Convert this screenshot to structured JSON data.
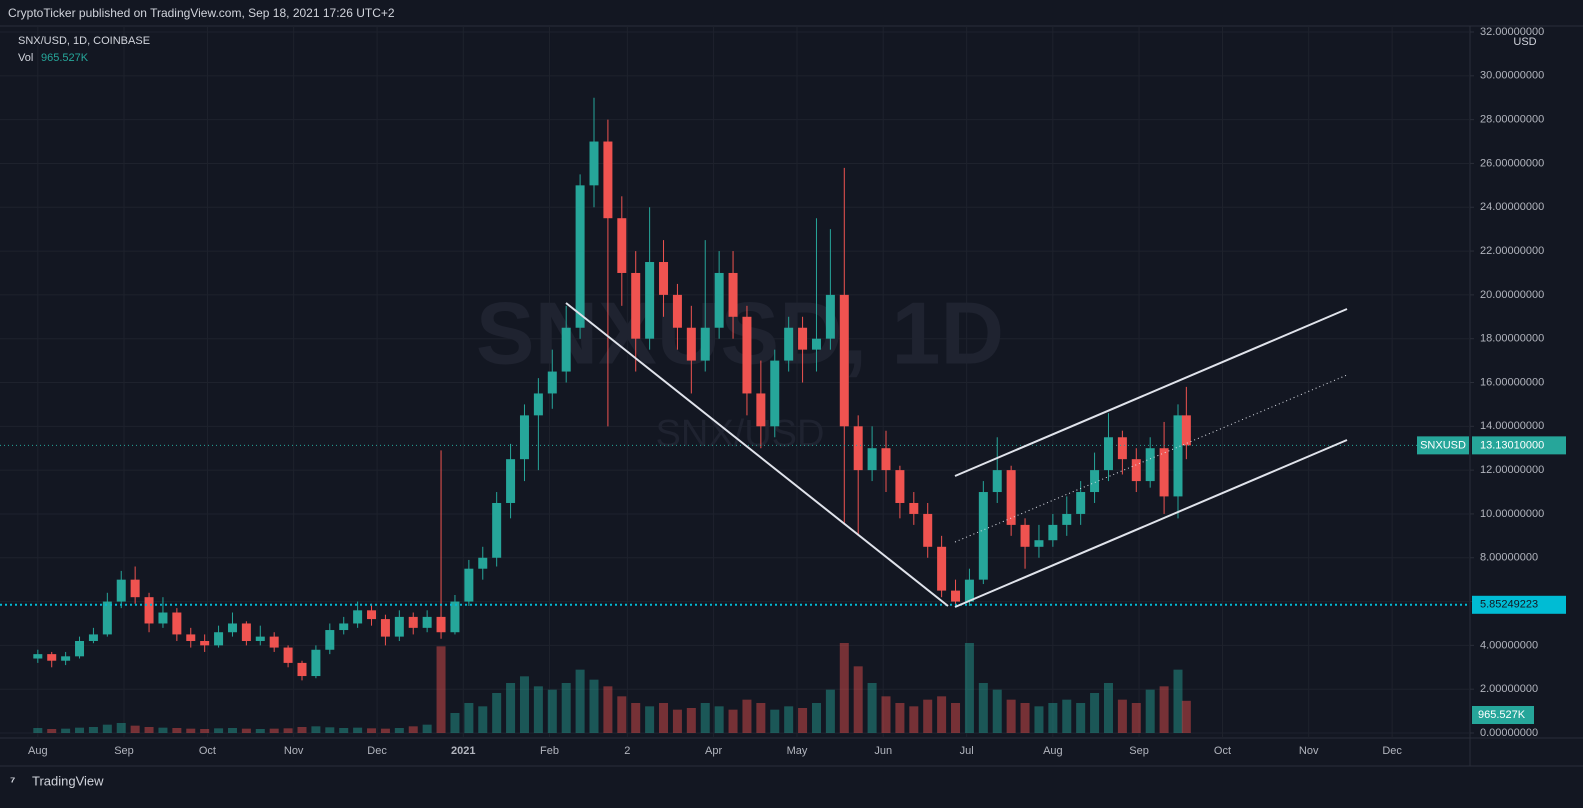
{
  "header": "CryptoTicker published on TradingView.com, Sep 18, 2021 17:26 UTC+2",
  "footer": "TradingView",
  "chart_data": {
    "type": "candlestick",
    "symbol_line": "SNX/USD, 1D, COINBASE",
    "watermark": "SNXUSD, 1D",
    "watermark_sub": "SNX/USD",
    "currency": "USD",
    "volume_title": "Vol",
    "volume_readout": "965.527K",
    "x": [
      0,
      5,
      10,
      15,
      20,
      25,
      30,
      35,
      40,
      45,
      50,
      55,
      60,
      65,
      70,
      75,
      80,
      85,
      90,
      95,
      100,
      105,
      110,
      115,
      120,
      125,
      130,
      135,
      140,
      145,
      150,
      155,
      160,
      165,
      170,
      175,
      180,
      185,
      190,
      195,
      200,
      205,
      210,
      215,
      220,
      225,
      230,
      235,
      240,
      245,
      250,
      255,
      260,
      265,
      270,
      275,
      280,
      285,
      290,
      295,
      300,
      305,
      310,
      315,
      320,
      325,
      330,
      335,
      340,
      345,
      350,
      355,
      360,
      365,
      370,
      375,
      380,
      385,
      390,
      395,
      400,
      405,
      410,
      413
    ],
    "open": [
      3.4,
      3.6,
      3.3,
      3.5,
      4.2,
      4.5,
      6.0,
      7.0,
      6.2,
      5.0,
      5.5,
      4.5,
      4.2,
      4.0,
      4.6,
      5.0,
      4.2,
      4.4,
      3.9,
      3.2,
      2.6,
      3.8,
      4.7,
      5.0,
      5.6,
      5.2,
      4.4,
      5.3,
      4.8,
      5.3,
      4.6,
      6.0,
      7.5,
      8.0,
      10.5,
      12.5,
      14.5,
      15.5,
      16.5,
      18.5,
      25.0,
      27.0,
      23.5,
      21.0,
      18.0,
      21.5,
      20.0,
      18.5,
      17.0,
      18.5,
      21.0,
      19.0,
      15.5,
      14.0,
      17.0,
      18.5,
      17.5,
      18.0,
      20.0,
      14.0,
      12.0,
      13.0,
      12.0,
      10.5,
      10.0,
      8.5,
      6.5,
      6.0,
      7.0,
      11.0,
      12.0,
      9.5,
      8.5,
      8.8,
      9.5,
      10.0,
      11.0,
      12.0,
      13.5,
      12.5,
      11.5,
      13.0,
      10.8,
      14.5
    ],
    "high": [
      3.8,
      3.7,
      3.7,
      4.4,
      4.8,
      6.4,
      7.4,
      7.6,
      6.4,
      6.2,
      5.7,
      4.8,
      4.5,
      4.9,
      5.5,
      5.1,
      4.9,
      4.6,
      4.0,
      3.3,
      4.0,
      5.0,
      5.3,
      6.0,
      5.9,
      5.4,
      5.6,
      5.5,
      5.6,
      12.9,
      6.3,
      7.9,
      8.5,
      11.0,
      13.2,
      15.0,
      16.2,
      17.5,
      19.5,
      25.5,
      29.0,
      28.0,
      24.5,
      22.0,
      24.0,
      22.5,
      20.5,
      19.5,
      22.5,
      22.0,
      22.0,
      19.5,
      17.0,
      17.5,
      19.0,
      19.0,
      23.5,
      23.0,
      25.8,
      14.5,
      14.0,
      13.8,
      12.2,
      11.0,
      10.5,
      9.0,
      7.0,
      7.5,
      11.5,
      13.5,
      12.2,
      9.8,
      9.5,
      10.0,
      10.8,
      11.5,
      12.8,
      14.6,
      13.8,
      13.0,
      13.5,
      14.2,
      15.0,
      15.8
    ],
    "low": [
      3.2,
      3.0,
      3.1,
      3.4,
      4.1,
      4.4,
      5.7,
      5.9,
      4.6,
      4.8,
      4.2,
      3.9,
      3.7,
      3.9,
      4.4,
      4.0,
      4.0,
      3.7,
      3.0,
      2.4,
      2.5,
      3.6,
      4.5,
      4.8,
      4.9,
      4.0,
      4.2,
      4.5,
      4.6,
      4.3,
      4.5,
      5.8,
      7.0,
      7.6,
      9.8,
      11.5,
      12.0,
      14.8,
      16.0,
      18.0,
      24.0,
      14.0,
      19.5,
      16.5,
      17.5,
      19.0,
      17.5,
      15.5,
      16.5,
      18.0,
      18.0,
      14.5,
      13.0,
      13.5,
      16.5,
      16.0,
      16.5,
      17.5,
      9.5,
      9.0,
      11.5,
      11.0,
      9.8,
      9.5,
      8.0,
      6.2,
      5.8,
      5.8,
      6.8,
      10.5,
      9.0,
      7.5,
      8.0,
      8.5,
      9.0,
      9.5,
      10.5,
      11.5,
      11.8,
      11.0,
      11.2,
      10.0,
      9.8,
      12.5
    ],
    "close": [
      3.6,
      3.3,
      3.5,
      4.2,
      4.5,
      6.0,
      7.0,
      6.2,
      5.0,
      5.5,
      4.5,
      4.2,
      4.0,
      4.6,
      5.0,
      4.2,
      4.4,
      3.9,
      3.2,
      2.6,
      3.8,
      4.7,
      5.0,
      5.6,
      5.2,
      4.4,
      5.3,
      4.8,
      5.3,
      4.6,
      6.0,
      7.5,
      8.0,
      10.5,
      12.5,
      14.5,
      15.5,
      16.5,
      18.5,
      25.0,
      27.0,
      23.5,
      21.0,
      18.0,
      21.5,
      20.0,
      18.5,
      17.0,
      18.5,
      21.0,
      19.0,
      15.5,
      14.0,
      17.0,
      18.5,
      17.5,
      18.0,
      20.0,
      14.0,
      12.0,
      13.0,
      12.0,
      10.5,
      10.0,
      8.5,
      6.5,
      6.0,
      7.0,
      11.0,
      12.0,
      9.5,
      8.5,
      8.8,
      9.5,
      10.0,
      11.0,
      12.0,
      13.5,
      12.5,
      11.5,
      13.0,
      10.8,
      14.5,
      13.13
    ],
    "volume": [
      150000,
      120000,
      130000,
      160000,
      180000,
      250000,
      300000,
      220000,
      180000,
      160000,
      150000,
      130000,
      120000,
      140000,
      150000,
      130000,
      120000,
      130000,
      140000,
      180000,
      200000,
      170000,
      150000,
      160000,
      140000,
      130000,
      150000,
      200000,
      250000,
      2600000,
      600000,
      900000,
      800000,
      1200000,
      1500000,
      1700000,
      1400000,
      1300000,
      1500000,
      1900000,
      1600000,
      1400000,
      1100000,
      900000,
      800000,
      900000,
      700000,
      750000,
      900000,
      800000,
      700000,
      1000000,
      900000,
      700000,
      800000,
      750000,
      900000,
      1300000,
      2700000,
      2000000,
      1500000,
      1100000,
      900000,
      800000,
      1000000,
      1100000,
      900000,
      2700000,
      1500000,
      1300000,
      1000000,
      900000,
      800000,
      900000,
      1000000,
      900000,
      1200000,
      1500000,
      1000000,
      900000,
      1300000,
      1400000,
      1900000,
      965527
    ],
    "volume_ylim": [
      0,
      3000000
    ],
    "up_color": "#26a69a",
    "down_color": "#ef5350",
    "xlim": [
      -10,
      515
    ],
    "xticks": [
      {
        "value": 0,
        "label": "Aug"
      },
      {
        "value": 31,
        "label": "Sep"
      },
      {
        "value": 61,
        "label": "Oct"
      },
      {
        "value": 92,
        "label": "Nov"
      },
      {
        "value": 122,
        "label": "Dec"
      },
      {
        "value": 153,
        "label": "2021"
      },
      {
        "value": 184,
        "label": "Feb"
      },
      {
        "value": 212,
        "label": "2"
      },
      {
        "value": 243,
        "label": "Apr"
      },
      {
        "value": 273,
        "label": "May"
      },
      {
        "value": 304,
        "label": "Jun"
      },
      {
        "value": 334,
        "label": "Jul"
      },
      {
        "value": 365,
        "label": "Aug"
      },
      {
        "value": 396,
        "label": "Sep"
      },
      {
        "value": 426,
        "label": "Oct"
      },
      {
        "value": 457,
        "label": "Nov"
      },
      {
        "value": 487,
        "label": "Dec"
      }
    ],
    "ylim": [
      0,
      32
    ],
    "yticks": [
      {
        "value": 0,
        "label": "0.00000000"
      },
      {
        "value": 2,
        "label": "2.00000000"
      },
      {
        "value": 4,
        "label": "4.00000000"
      },
      {
        "value": 6,
        "label": "6.00000000"
      },
      {
        "value": 8,
        "label": "8.00000000"
      },
      {
        "value": 10,
        "label": "10.00000000"
      },
      {
        "value": 12,
        "label": "12.00000000"
      },
      {
        "value": 14,
        "label": "14.00000000"
      },
      {
        "value": 16,
        "label": "16.00000000"
      },
      {
        "value": 18,
        "label": "18.00000000"
      },
      {
        "value": 20,
        "label": "20.00000000"
      },
      {
        "value": 22,
        "label": "22.00000000"
      },
      {
        "value": 24,
        "label": "24.00000000"
      },
      {
        "value": 26,
        "label": "26.00000000"
      },
      {
        "value": 28,
        "label": "28.00000000"
      },
      {
        "value": 30,
        "label": "30.00000000"
      },
      {
        "value": 32,
        "label": "32.00000000"
      }
    ],
    "grid": true,
    "last_price": {
      "symbol": "SNXUSD",
      "value": 13.1301,
      "label": "13.13010000"
    },
    "marked_level": {
      "value": 5.85249223,
      "label": "5.85249223"
    }
  }
}
